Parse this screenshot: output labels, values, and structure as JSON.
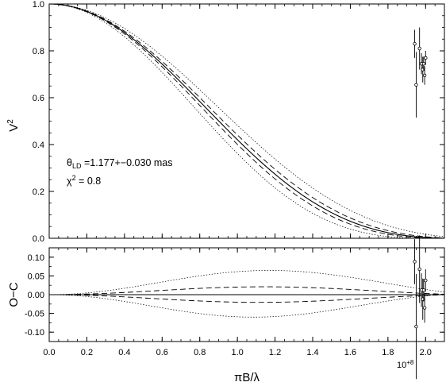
{
  "chart_data": [
    {
      "type": "line",
      "panel": "top",
      "ylabel": "V",
      "ylabel_sup": "2",
      "xlim": [
        0.0,
        2.1
      ],
      "ylim": [
        0.0,
        1.0
      ],
      "xticks": [
        "0.0",
        "0.2",
        "0.4",
        "0.6",
        "0.8",
        "1.0",
        "1.2",
        "1.4",
        "1.6",
        "1.8",
        "2.0"
      ],
      "yticks": [
        "0.0",
        "0.2",
        "0.4",
        "0.6",
        "0.8",
        "1.0"
      ],
      "annotations": {
        "theta_symbol": "θ",
        "theta_sub": "LD",
        "theta_text": " =1.177+−0.030 mas",
        "chi_symbol": "χ",
        "chi_sup": "2",
        "chi_text": " = 0.8"
      },
      "model": {
        "theta_mas": 1.177,
        "theta_err_mas": 0.03,
        "x_scale_label": "10+8",
        "curves": [
          "best fit (solid)",
          "±1σ (dashed)",
          "±3σ (dotted)"
        ]
      },
      "points": [
        {
          "x": 1.942,
          "y": 0.83,
          "err": 0.06
        },
        {
          "x": 1.95,
          "y": 0.655,
          "err": 0.14
        },
        {
          "x": 1.968,
          "y": 0.81,
          "err": 0.09
        },
        {
          "x": 1.978,
          "y": 0.745,
          "err": 0.045
        },
        {
          "x": 1.985,
          "y": 0.72,
          "err": 0.055
        },
        {
          "x": 1.99,
          "y": 0.745,
          "err": 0.03
        },
        {
          "x": 1.995,
          "y": 0.695,
          "err": 0.04
        },
        {
          "x": 2.0,
          "y": 0.77,
          "err": 0.03
        }
      ]
    },
    {
      "type": "scatter",
      "panel": "bottom",
      "ylabel": "O−C",
      "xlabel": "πB/λ",
      "x_multiplier": "10",
      "x_multiplier_exp": "+8",
      "xlim": [
        0.0,
        2.1
      ],
      "ylim": [
        -0.125,
        0.125
      ],
      "xticks": [
        "0.0",
        "0.2",
        "0.4",
        "0.6",
        "0.8",
        "1.0",
        "1.2",
        "1.4",
        "1.6",
        "1.8",
        "2.0"
      ],
      "yticks": [
        "0.10",
        "0.05",
        "0.00",
        "-0.05",
        "-0.10"
      ],
      "points": [
        {
          "x": 1.942,
          "y": 0.088,
          "err": 0.06
        },
        {
          "x": 1.95,
          "y": -0.085,
          "err": 0.14
        },
        {
          "x": 1.968,
          "y": 0.068,
          "err": 0.09
        },
        {
          "x": 1.978,
          "y": 0.012,
          "err": 0.045
        },
        {
          "x": 1.985,
          "y": -0.012,
          "err": 0.055
        },
        {
          "x": 1.99,
          "y": 0.012,
          "err": 0.03
        },
        {
          "x": 1.995,
          "y": -0.035,
          "err": 0.04
        },
        {
          "x": 2.0,
          "y": 0.038,
          "err": 0.03
        }
      ]
    }
  ]
}
